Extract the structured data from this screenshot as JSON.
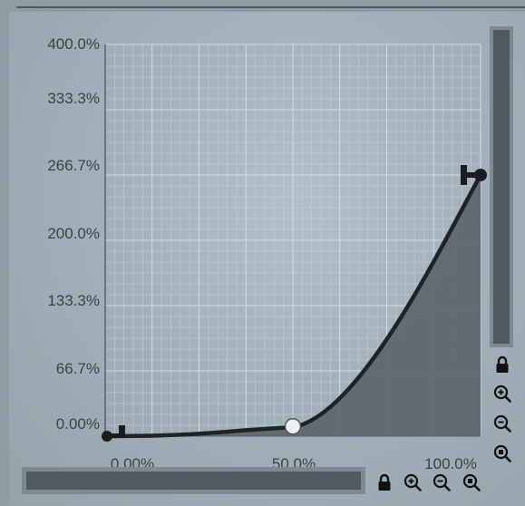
{
  "graph": {
    "y_ticks": [
      "400.0%",
      "333.3%",
      "266.7%",
      "200.0%",
      "133.3%",
      "66.7%",
      "0.00%"
    ],
    "x_ticks": [
      "0.00%",
      "50.0%",
      "100.0%"
    ],
    "curve_color": "#1f2326",
    "fill_color": "#5b6468",
    "grid_color": "#c6d2d8"
  },
  "chart_data": {
    "type": "area",
    "x": [
      0,
      50,
      100
    ],
    "y": [
      0,
      9,
      266.7
    ],
    "xlim": [
      0,
      100
    ],
    "ylim": [
      0,
      400
    ],
    "grid": true,
    "points": [
      {
        "x": 0,
        "y": 0,
        "kind": "start-handle"
      },
      {
        "x": 50,
        "y": 9,
        "kind": "midpoint-handle"
      },
      {
        "x": 100,
        "y": 266.7,
        "kind": "end-handle"
      }
    ]
  },
  "controls": {
    "vertical_icons": [
      "lock-icon",
      "zoom-in-icon",
      "zoom-out-icon",
      "zoom-reset-icon"
    ],
    "horizontal_icons": [
      "lock-icon",
      "zoom-in-icon",
      "zoom-out-icon",
      "zoom-reset-icon"
    ]
  }
}
